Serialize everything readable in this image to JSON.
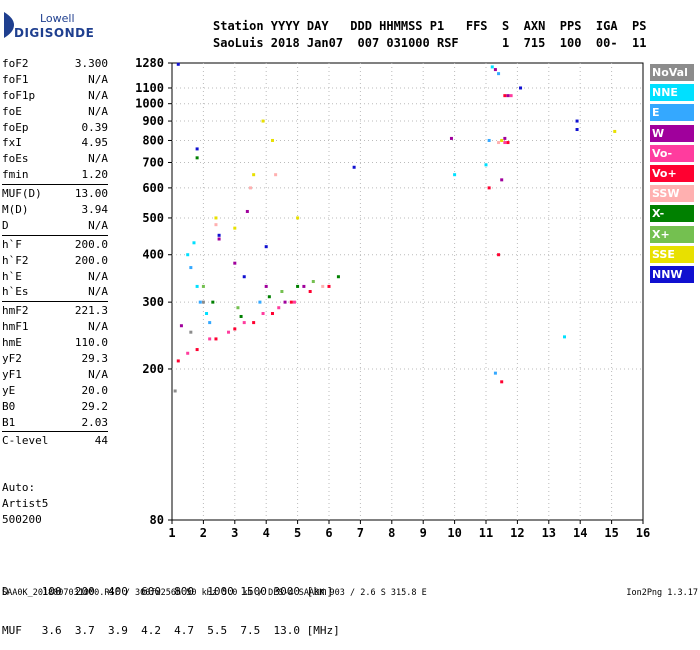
{
  "logo": {
    "line1": "Lowell",
    "line2": "DIGISONDE"
  },
  "header": {
    "line1": "Station YYYY DAY   DDD HHMMSS P1   FFS  S  AXN  PPS  IGA  PS",
    "line2": "SaoLuis 2018 Jan07  007 031000 RSF      1  715  100  00-  11"
  },
  "params": [
    {
      "group": [
        {
          "name": "foF2",
          "value": "3.300"
        },
        {
          "name": "foF1",
          "value": "N/A"
        },
        {
          "name": "foF1p",
          "value": "N/A"
        },
        {
          "name": "foE",
          "value": "N/A"
        },
        {
          "name": "foEp",
          "value": "0.39"
        },
        {
          "name": "fxI",
          "value": "4.95"
        },
        {
          "name": "foEs",
          "value": "N/A"
        },
        {
          "name": "fmin",
          "value": "1.20"
        }
      ]
    },
    {
      "group": [
        {
          "name": "MUF(D)",
          "value": "13.00"
        },
        {
          "name": "M(D)",
          "value": "3.94"
        },
        {
          "name": "D",
          "value": "N/A"
        }
      ]
    },
    {
      "group": [
        {
          "name": "h`F",
          "value": "200.0"
        },
        {
          "name": "h`F2",
          "value": "200.0"
        },
        {
          "name": "h`E",
          "value": "N/A"
        },
        {
          "name": "h`Es",
          "value": "N/A"
        }
      ]
    },
    {
      "group": [
        {
          "name": "hmF2",
          "value": "221.3"
        },
        {
          "name": "hmF1",
          "value": "N/A"
        },
        {
          "name": "hmE",
          "value": "110.0"
        },
        {
          "name": "yF2",
          "value": "29.3"
        },
        {
          "name": "yF1",
          "value": "N/A"
        },
        {
          "name": "yE",
          "value": "20.0"
        },
        {
          "name": "B0",
          "value": "29.2"
        },
        {
          "name": "B1",
          "value": "2.03"
        }
      ]
    },
    {
      "group": [
        {
          "name": "C-level",
          "value": "44"
        }
      ]
    }
  ],
  "auto": {
    "line1": "Auto:",
    "line2": "Artist5",
    "line3": "500200"
  },
  "muf_table": {
    "row1": "D     100  200  400  600  800  1000 1500 3000 [km]",
    "row2": "MUF   3.6  3.7  3.9  4.2  4.7  5.5  7.5  13.0 [MHz]"
  },
  "footer": "SAA0K_2018007031000.RSF / 300fx256h 50 kHz 5.0 km / DPS-4 SAA0K 903 / 2.6 S 315.8 E",
  "version": "Ion2Png 1.3.17",
  "legend": [
    {
      "label": "NoVal",
      "color": "#8c8c8c"
    },
    {
      "label": "NNE",
      "color": "#00e0ff"
    },
    {
      "label": "E",
      "color": "#34a8ff"
    },
    {
      "label": "W",
      "color": "#a0009c"
    },
    {
      "label": "Vo-",
      "color": "#ff3c9e"
    },
    {
      "label": "Vo+",
      "color": "#ff0030"
    },
    {
      "label": "SSW",
      "color": "#ffb0b0"
    },
    {
      "label": "X-",
      "color": "#008000"
    },
    {
      "label": "X+",
      "color": "#74c050"
    },
    {
      "label": "SSE",
      "color": "#e8e000"
    },
    {
      "label": "NNW",
      "color": "#1010d0"
    }
  ],
  "chart_data": {
    "type": "scatter",
    "title": "",
    "xlabel": "",
    "ylabel": "",
    "x_unit": "MHz",
    "y_unit": "km",
    "xlim": [
      1,
      16
    ],
    "ylim": [
      80,
      1280
    ],
    "y_scale": "log",
    "xticks": [
      1,
      2,
      3,
      4,
      5,
      6,
      7,
      8,
      9,
      10,
      11,
      12,
      13,
      14,
      15,
      16
    ],
    "yticks": [
      80,
      200,
      300,
      400,
      500,
      600,
      700,
      800,
      900,
      1000,
      1100,
      1280
    ],
    "grid": true,
    "legend_position": "right",
    "series": [
      {
        "name": "NoVal",
        "points": [
          [
            1.1,
            175
          ],
          [
            1.6,
            250
          ],
          [
            2.0,
            300
          ]
        ]
      },
      {
        "name": "NNE",
        "points": [
          [
            1.5,
            400
          ],
          [
            1.7,
            430
          ],
          [
            1.8,
            330
          ],
          [
            2.1,
            280
          ],
          [
            10.0,
            650
          ],
          [
            11.2,
            1250
          ],
          [
            11.0,
            690
          ],
          [
            13.5,
            243
          ]
        ]
      },
      {
        "name": "E",
        "points": [
          [
            1.6,
            370
          ],
          [
            1.9,
            300
          ],
          [
            2.2,
            265
          ],
          [
            3.8,
            300
          ],
          [
            11.4,
            1200
          ],
          [
            11.3,
            195
          ],
          [
            11.1,
            800
          ]
        ]
      },
      {
        "name": "W",
        "points": [
          [
            1.3,
            260
          ],
          [
            2.5,
            440
          ],
          [
            3.0,
            380
          ],
          [
            3.4,
            520
          ],
          [
            4.0,
            330
          ],
          [
            4.6,
            300
          ],
          [
            5.2,
            330
          ],
          [
            11.3,
            1230
          ],
          [
            11.6,
            810
          ],
          [
            11.7,
            1050
          ],
          [
            9.9,
            810
          ],
          [
            11.5,
            630
          ]
        ]
      },
      {
        "name": "Vo-",
        "points": [
          [
            1.5,
            220
          ],
          [
            2.2,
            240
          ],
          [
            2.8,
            250
          ],
          [
            3.3,
            265
          ],
          [
            3.9,
            280
          ],
          [
            4.4,
            290
          ],
          [
            4.9,
            300
          ],
          [
            11.8,
            1050
          ],
          [
            11.6,
            790
          ]
        ]
      },
      {
        "name": "Vo+",
        "points": [
          [
            1.2,
            210
          ],
          [
            1.8,
            225
          ],
          [
            2.4,
            240
          ],
          [
            3.0,
            255
          ],
          [
            3.6,
            265
          ],
          [
            4.2,
            280
          ],
          [
            4.8,
            300
          ],
          [
            5.4,
            320
          ],
          [
            6.0,
            330
          ],
          [
            11.6,
            1050
          ],
          [
            11.5,
            185
          ],
          [
            11.4,
            400
          ],
          [
            11.7,
            790
          ],
          [
            11.1,
            600
          ]
        ]
      },
      {
        "name": "SSW",
        "points": [
          [
            2.4,
            480
          ],
          [
            3.5,
            600
          ],
          [
            4.3,
            650
          ],
          [
            5.8,
            330
          ],
          [
            11.4,
            790
          ]
        ]
      },
      {
        "name": "X-",
        "points": [
          [
            1.8,
            720
          ],
          [
            2.3,
            300
          ],
          [
            3.2,
            275
          ],
          [
            4.1,
            310
          ],
          [
            5.0,
            330
          ],
          [
            6.3,
            350
          ]
        ]
      },
      {
        "name": "X+",
        "points": [
          [
            2.0,
            330
          ],
          [
            3.1,
            290
          ],
          [
            4.5,
            320
          ],
          [
            5.5,
            340
          ]
        ]
      },
      {
        "name": "SSE",
        "points": [
          [
            2.4,
            500
          ],
          [
            3.0,
            470
          ],
          [
            3.6,
            650
          ],
          [
            3.9,
            900
          ],
          [
            4.2,
            800
          ],
          [
            5.0,
            500
          ],
          [
            11.5,
            800
          ],
          [
            15.1,
            845
          ]
        ]
      },
      {
        "name": "NNW",
        "points": [
          [
            1.2,
            1270
          ],
          [
            1.8,
            760
          ],
          [
            2.5,
            450
          ],
          [
            3.3,
            350
          ],
          [
            4.0,
            420
          ],
          [
            12.1,
            1100
          ],
          [
            13.9,
            900
          ],
          [
            13.9,
            855
          ],
          [
            6.8,
            680
          ]
        ]
      }
    ]
  }
}
